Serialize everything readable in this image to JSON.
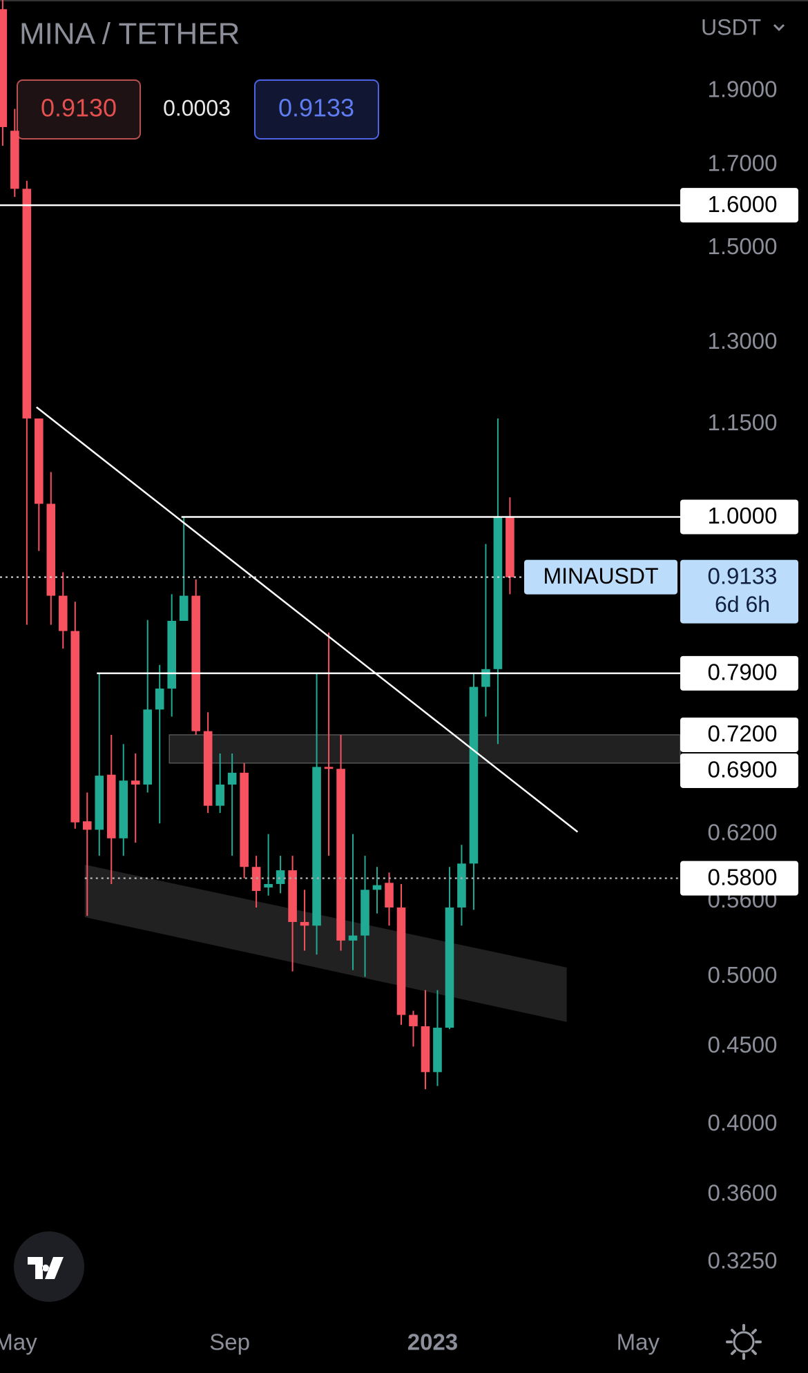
{
  "chart_data": {
    "type": "candlestick",
    "title": "MINA / TETHER",
    "bid": "0.9130",
    "spread": "0.0003",
    "ask": "0.9133",
    "currency": "USDT",
    "log": true,
    "grid": false,
    "up_color": "#22ab94",
    "down_color": "#f7525f",
    "x": [
      0,
      1,
      2,
      3,
      4,
      5,
      6,
      7,
      8,
      9,
      10,
      11,
      12,
      13,
      14,
      15,
      16,
      17,
      18,
      19,
      20,
      21,
      22,
      23,
      24,
      25,
      26,
      27,
      28,
      29,
      30,
      31,
      32,
      33,
      34,
      35,
      36,
      37,
      38,
      39,
      40,
      41,
      42
    ],
    "open": [
      2.15,
      1.79,
      1.64,
      1.16,
      1.02,
      0.888,
      0.842,
      0.632,
      0.624,
      0.678,
      0.616,
      0.672,
      0.668,
      0.748,
      0.772,
      0.855,
      0.888,
      0.724,
      0.647,
      0.668,
      0.68,
      0.59,
      0.572,
      0.575,
      0.587,
      0.543,
      0.54,
      0.686,
      0.684,
      0.528,
      0.532,
      0.57,
      0.576,
      0.555,
      0.472,
      0.464,
      0.433,
      0.463,
      0.555,
      0.593,
      0.774,
      0.795,
      1.0
    ],
    "high": [
      2.18,
      1.85,
      1.66,
      1.16,
      1.07,
      0.92,
      0.88,
      0.66,
      0.79,
      0.72,
      0.71,
      0.7,
      0.856,
      0.8,
      0.89,
      1.0,
      0.91,
      0.745,
      0.7,
      0.7,
      0.69,
      0.6,
      0.62,
      0.6,
      0.6,
      0.57,
      0.79,
      0.84,
      0.72,
      0.62,
      0.6,
      0.59,
      0.585,
      0.575,
      0.475,
      0.49,
      0.49,
      0.59,
      0.61,
      0.79,
      0.96,
      1.16,
      1.03
    ],
    "low": [
      1.75,
      1.62,
      0.85,
      0.95,
      0.85,
      0.82,
      0.625,
      0.548,
      0.6,
      0.575,
      0.6,
      0.612,
      0.66,
      0.63,
      0.74,
      0.855,
      0.72,
      0.64,
      0.64,
      0.6,
      0.58,
      0.555,
      0.565,
      0.567,
      0.504,
      0.52,
      0.517,
      0.6,
      0.52,
      0.505,
      0.5,
      0.55,
      0.54,
      0.465,
      0.45,
      0.422,
      0.424,
      0.462,
      0.54,
      0.553,
      0.74,
      0.71,
      0.89
    ],
    "close": [
      1.8,
      1.64,
      1.16,
      1.02,
      0.888,
      0.842,
      0.631,
      0.624,
      0.677,
      0.616,
      0.672,
      0.668,
      0.748,
      0.772,
      0.855,
      0.888,
      0.724,
      0.647,
      0.668,
      0.68,
      0.59,
      0.569,
      0.575,
      0.587,
      0.543,
      0.54,
      0.686,
      0.684,
      0.528,
      0.532,
      0.57,
      0.574,
      0.555,
      0.472,
      0.464,
      0.433,
      0.463,
      0.555,
      0.593,
      0.774,
      0.795,
      1.0,
      0.913
    ],
    "xlim": [
      -0.22,
      56.1
    ],
    "xticks": [
      {
        "value": 1.07,
        "label": "May"
      },
      {
        "value": 18.8,
        "label": "Sep"
      },
      {
        "value": 35.6,
        "label": "2023"
      },
      {
        "value": 52.6,
        "label": "May"
      }
    ],
    "ylim": [
      0.299,
      2.18
    ],
    "yticks": [
      {
        "value": 1.9,
        "label": "1.9000"
      },
      {
        "value": 1.7,
        "label": "1.7000"
      },
      {
        "value": 1.5,
        "label": "1.5000"
      },
      {
        "value": 1.3,
        "label": "1.3000"
      },
      {
        "value": 1.15,
        "label": "1.1500"
      },
      {
        "value": 0.62,
        "label": "0.6200"
      },
      {
        "value": 0.56,
        "label": "0.5600"
      },
      {
        "value": 0.5,
        "label": "0.5000"
      },
      {
        "value": 0.45,
        "label": "0.4500"
      },
      {
        "value": 0.4,
        "label": "0.4000"
      },
      {
        "value": 0.36,
        "label": "0.3600"
      },
      {
        "value": 0.325,
        "label": "0.3250"
      }
    ],
    "levels": [
      {
        "value": 1.6,
        "label": "1.6000",
        "from": -0.22,
        "style": "solid"
      },
      {
        "value": 1.0,
        "label": "1.0000",
        "from": 14.8,
        "style": "solid"
      },
      {
        "value": 0.79,
        "label": "0.7900",
        "from": 7.8,
        "style": "solid"
      },
      {
        "value": 0.58,
        "label": "0.5800",
        "from": 6.8,
        "style": "dotted"
      }
    ],
    "zone": {
      "high": 0.72,
      "high_label": "0.7200",
      "low": 0.69,
      "low_label": "0.6900",
      "from": 13.8
    },
    "trendline": {
      "x": [
        2.8,
        47.6
      ],
      "y": [
        1.18,
        0.622
      ]
    },
    "channel": {
      "x": [
        6.8,
        46.7
      ],
      "upper": [
        0.592,
        0.507
      ],
      "lower": [
        0.547,
        0.467
      ]
    },
    "current": {
      "symbol": "MINAUSDT",
      "value": 0.9133,
      "label": "0.9133",
      "countdown": "6d 6h"
    }
  }
}
